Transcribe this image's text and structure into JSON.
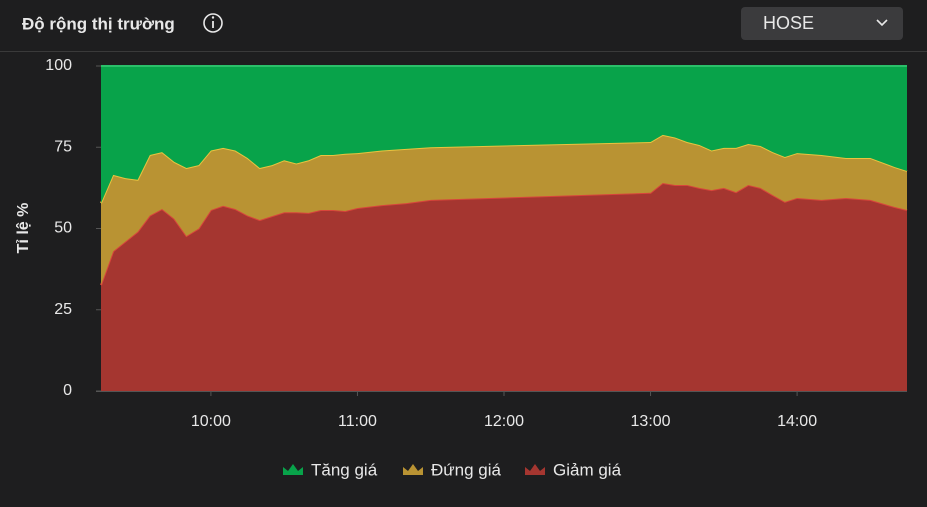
{
  "header": {
    "title": "Độ rộng thị trường",
    "exchange": "HOSE"
  },
  "chart_data": {
    "type": "stacked-area",
    "y_label": "Tỉ lệ %",
    "x": [
      "09:15",
      "09:20",
      "09:25",
      "09:30",
      "09:35",
      "09:40",
      "09:45",
      "09:50",
      "09:55",
      "10:00",
      "10:05",
      "10:10",
      "10:15",
      "10:20",
      "10:25",
      "10:30",
      "10:35",
      "10:40",
      "10:45",
      "10:50",
      "10:55",
      "11:00",
      "11:10",
      "11:20",
      "11:30",
      "13:00",
      "13:05",
      "13:10",
      "13:15",
      "13:20",
      "13:25",
      "13:30",
      "13:35",
      "13:40",
      "13:45",
      "13:50",
      "13:55",
      "14:00",
      "14:10",
      "14:20",
      "14:30",
      "14:40",
      "14:45"
    ],
    "series": [
      {
        "name": "Tăng giá",
        "color": "#08a34a",
        "values": [
          42.2,
          33.5,
          34.5,
          35.0,
          27.4,
          26.5,
          29.5,
          31.4,
          30.5,
          26.0,
          25.2,
          26.0,
          28.3,
          31.4,
          30.5,
          29.0,
          30.0,
          29.0,
          27.4,
          27.4,
          27.0,
          26.8,
          26.0,
          25.5,
          25.0,
          23.4,
          21.2,
          22.0,
          23.4,
          24.3,
          26.0,
          25.2,
          25.2,
          24.0,
          24.6,
          26.5,
          28.0,
          26.8,
          27.4,
          28.3,
          28.3,
          31.1,
          32.3
        ]
      },
      {
        "name": "Đứng giá",
        "color": "#b99333",
        "values": [
          25.2,
          23.5,
          19.5,
          16.0,
          18.6,
          17.5,
          17.5,
          20.9,
          19.5,
          18.3,
          17.8,
          18.0,
          17.7,
          16.0,
          15.7,
          16.0,
          15.0,
          16.2,
          16.9,
          16.9,
          17.6,
          16.9,
          16.8,
          16.7,
          16.2,
          15.6,
          14.8,
          14.6,
          13.2,
          13.2,
          12.2,
          12.3,
          13.6,
          12.6,
          12.9,
          13.2,
          13.8,
          13.8,
          13.8,
          12.3,
          12.9,
          12.3,
          12.0
        ]
      },
      {
        "name": "Giảm giá",
        "color": "#a53630",
        "values": [
          32.6,
          43.0,
          46.0,
          49.0,
          54.0,
          56.0,
          53.0,
          47.7,
          50.0,
          55.7,
          57.0,
          56.0,
          54.0,
          52.6,
          53.8,
          55.0,
          55.0,
          54.8,
          55.7,
          55.7,
          55.4,
          56.3,
          57.2,
          57.8,
          58.8,
          61.0,
          64.0,
          63.4,
          63.4,
          62.5,
          61.8,
          62.5,
          61.2,
          63.4,
          62.5,
          60.3,
          58.2,
          59.4,
          58.8,
          59.4,
          58.8,
          56.6,
          55.7
        ]
      }
    ],
    "xlim": [
      "09:15",
      "14:45"
    ],
    "xticks": [
      "10:00",
      "11:00",
      "12:00",
      "13:00",
      "14:00"
    ],
    "ylim": [
      0,
      100
    ],
    "yticks": [
      0,
      25,
      50,
      75,
      100
    ],
    "legend": "bottom"
  }
}
